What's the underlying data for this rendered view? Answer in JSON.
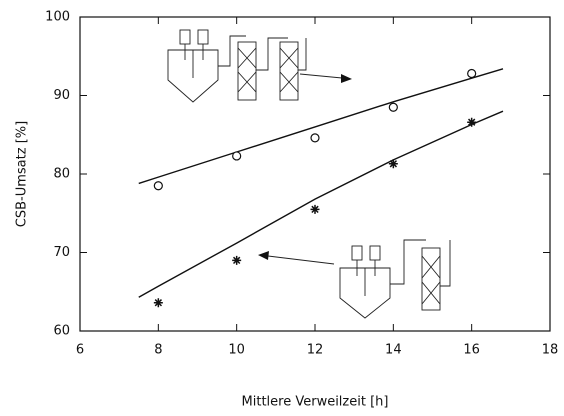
{
  "chart_data": {
    "type": "scatter",
    "xlabel": "Mittlere Verweilzeit [h]",
    "ylabel": "CSB-Umsatz [%]",
    "xlim": [
      6,
      18
    ],
    "xticks": [
      6,
      8,
      10,
      12,
      14,
      16,
      18
    ],
    "ylim": [
      60,
      100
    ],
    "yticks": [
      60,
      70,
      80,
      90,
      100
    ],
    "color": "#111111",
    "series": [
      {
        "marker": "circle",
        "x": [
          8,
          10,
          12,
          14,
          16
        ],
        "values": [
          78.5,
          82.3,
          84.6,
          88.5,
          92.8
        ]
      },
      {
        "marker": "star",
        "x": [
          8,
          10,
          12,
          14,
          16
        ],
        "values": [
          63.6,
          69.0,
          75.5,
          81.3,
          86.6
        ]
      }
    ],
    "curves": [
      {
        "x": [
          7.5,
          8,
          10,
          12,
          14,
          16,
          16.8
        ],
        "values": [
          78.8,
          79.6,
          82.8,
          86.0,
          89.2,
          92.2,
          93.4
        ]
      },
      {
        "x": [
          7.5,
          8,
          10,
          12,
          14,
          16,
          16.8
        ],
        "values": [
          64.3,
          65.7,
          71.2,
          76.8,
          81.8,
          86.3,
          88.0
        ]
      }
    ]
  }
}
